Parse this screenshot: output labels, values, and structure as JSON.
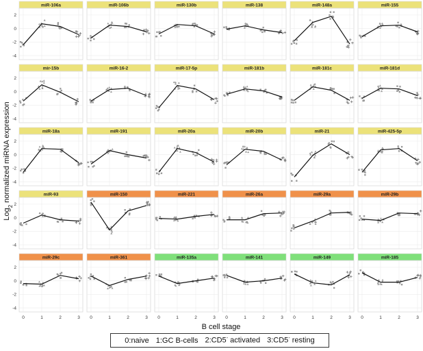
{
  "chart_data": {
    "type": "scatter",
    "xlabel": "B cell stage",
    "ylabel": "Log2 normalized miRNA expression",
    "x_ticks": [
      0,
      1,
      2,
      3
    ],
    "y_ticks": [
      2,
      0,
      -2,
      -4
    ],
    "ylim": [
      -4.6,
      3.0
    ],
    "legend_items": [
      {
        "code": "0",
        "label": "naive",
        "sup": ""
      },
      {
        "code": "1",
        "label": "GC B-cells",
        "sup": ""
      },
      {
        "code": "2",
        "label": "CD5",
        "sup": "-",
        "suffix": "activated"
      },
      {
        "code": "3",
        "label": "CD5",
        "sup": "-",
        "suffix": "resting"
      }
    ],
    "strip_colors": {
      "yellow": "#ece27a",
      "orange": "#f0914a",
      "green": "#7fe07a"
    },
    "panels": [
      {
        "name": "miR-106a",
        "strip": "yellow",
        "trend": [
          -2.4,
          0.7,
          0.3,
          -0.9
        ],
        "spread": 0.55
      },
      {
        "name": "miR-106b",
        "strip": "yellow",
        "trend": [
          -1.4,
          0.5,
          0.3,
          -0.5
        ],
        "spread": 0.45
      },
      {
        "name": "miR-130b",
        "strip": "yellow",
        "trend": [
          -0.8,
          0.6,
          0.4,
          -0.8
        ],
        "spread": 0.4
      },
      {
        "name": "miR-138",
        "strip": "yellow",
        "trend": [
          -0.1,
          0.4,
          -0.2,
          -0.6
        ],
        "spread": 0.35
      },
      {
        "name": "miR-148a",
        "strip": "yellow",
        "trend": [
          -1.8,
          0.9,
          1.8,
          -2.3
        ],
        "spread": 0.7
      },
      {
        "name": "miR-155",
        "strip": "yellow",
        "trend": [
          -1.2,
          0.4,
          0.5,
          -0.5
        ],
        "spread": 0.4
      },
      {
        "name": "mir-15b",
        "strip": "yellow",
        "trend": [
          -1.4,
          1.0,
          -0.1,
          -1.5
        ],
        "spread": 0.6
      },
      {
        "name": "miR-16-2",
        "strip": "yellow",
        "trend": [
          -1.4,
          0.3,
          0.5,
          -0.6
        ],
        "spread": 0.4
      },
      {
        "name": "miR-17-5p",
        "strip": "yellow",
        "trend": [
          -2.4,
          0.9,
          0.4,
          -1.2
        ],
        "spread": 0.5
      },
      {
        "name": "miR-181b",
        "strip": "yellow",
        "trend": [
          -0.4,
          0.4,
          0.1,
          -0.8
        ],
        "spread": 0.35
      },
      {
        "name": "miR-181c",
        "strip": "yellow",
        "trend": [
          -1.3,
          0.7,
          0.2,
          -1.3
        ],
        "spread": 0.45
      },
      {
        "name": "miR-181d",
        "strip": "yellow",
        "trend": [
          -1.0,
          0.5,
          0.4,
          -0.6
        ],
        "spread": 0.45
      },
      {
        "name": "miR-18a",
        "strip": "yellow",
        "trend": [
          -2.6,
          0.9,
          0.8,
          -1.2
        ],
        "spread": 0.5
      },
      {
        "name": "miR-191",
        "strip": "yellow",
        "trend": [
          -1.4,
          0.6,
          0.0,
          -0.5
        ],
        "spread": 0.4
      },
      {
        "name": "miR-20a",
        "strip": "yellow",
        "trend": [
          -2.6,
          0.9,
          0.3,
          -1.1
        ],
        "spread": 0.5
      },
      {
        "name": "miR-20b",
        "strip": "yellow",
        "trend": [
          -1.5,
          0.8,
          0.5,
          -0.8
        ],
        "spread": 0.45
      },
      {
        "name": "miR-21",
        "strip": "yellow",
        "trend": [
          -3.3,
          -0.1,
          1.6,
          0.0
        ],
        "spread": 0.6
      },
      {
        "name": "miR-425-5p",
        "strip": "yellow",
        "trend": [
          -2.6,
          0.7,
          0.9,
          -0.9
        ],
        "spread": 0.5
      },
      {
        "name": "miR-93",
        "strip": "yellow",
        "trend": [
          -0.8,
          0.4,
          -0.3,
          -0.5
        ],
        "spread": 0.35
      },
      {
        "name": "miR-150",
        "strip": "orange",
        "trend": [
          2.3,
          -1.8,
          1.0,
          1.8
        ],
        "spread": 0.55
      },
      {
        "name": "miR-221",
        "strip": "orange",
        "trend": [
          -0.1,
          -0.2,
          0.2,
          0.5
        ],
        "spread": 0.35
      },
      {
        "name": "miR-26a",
        "strip": "orange",
        "trend": [
          -0.3,
          -0.3,
          0.6,
          0.7
        ],
        "spread": 0.45
      },
      {
        "name": "miR-29a",
        "strip": "orange",
        "trend": [
          -1.5,
          -0.5,
          0.7,
          0.8
        ],
        "spread": 0.45
      },
      {
        "name": "miR-29b",
        "strip": "orange",
        "trend": [
          -0.2,
          -0.4,
          0.7,
          0.6
        ],
        "spread": 0.45
      },
      {
        "name": "miR-29c",
        "strip": "orange",
        "trend": [
          -0.4,
          -0.5,
          0.8,
          0.3
        ],
        "spread": 0.4
      },
      {
        "name": "miR-361",
        "strip": "orange",
        "trend": [
          0.7,
          -0.7,
          0.2,
          0.7
        ],
        "spread": 0.45
      },
      {
        "name": "miR-135a",
        "strip": "green",
        "trend": [
          0.7,
          -0.4,
          0.0,
          0.4
        ],
        "spread": 0.35
      },
      {
        "name": "miR-141",
        "strip": "green",
        "trend": [
          0.8,
          -0.2,
          0.0,
          0.4
        ],
        "spread": 0.35
      },
      {
        "name": "miR-149",
        "strip": "green",
        "trend": [
          1.0,
          -0.3,
          -0.6,
          0.9
        ],
        "spread": 0.45
      },
      {
        "name": "miR-185",
        "strip": "green",
        "trend": [
          1.2,
          -0.2,
          -0.2,
          0.5
        ],
        "spread": 0.4
      }
    ]
  }
}
